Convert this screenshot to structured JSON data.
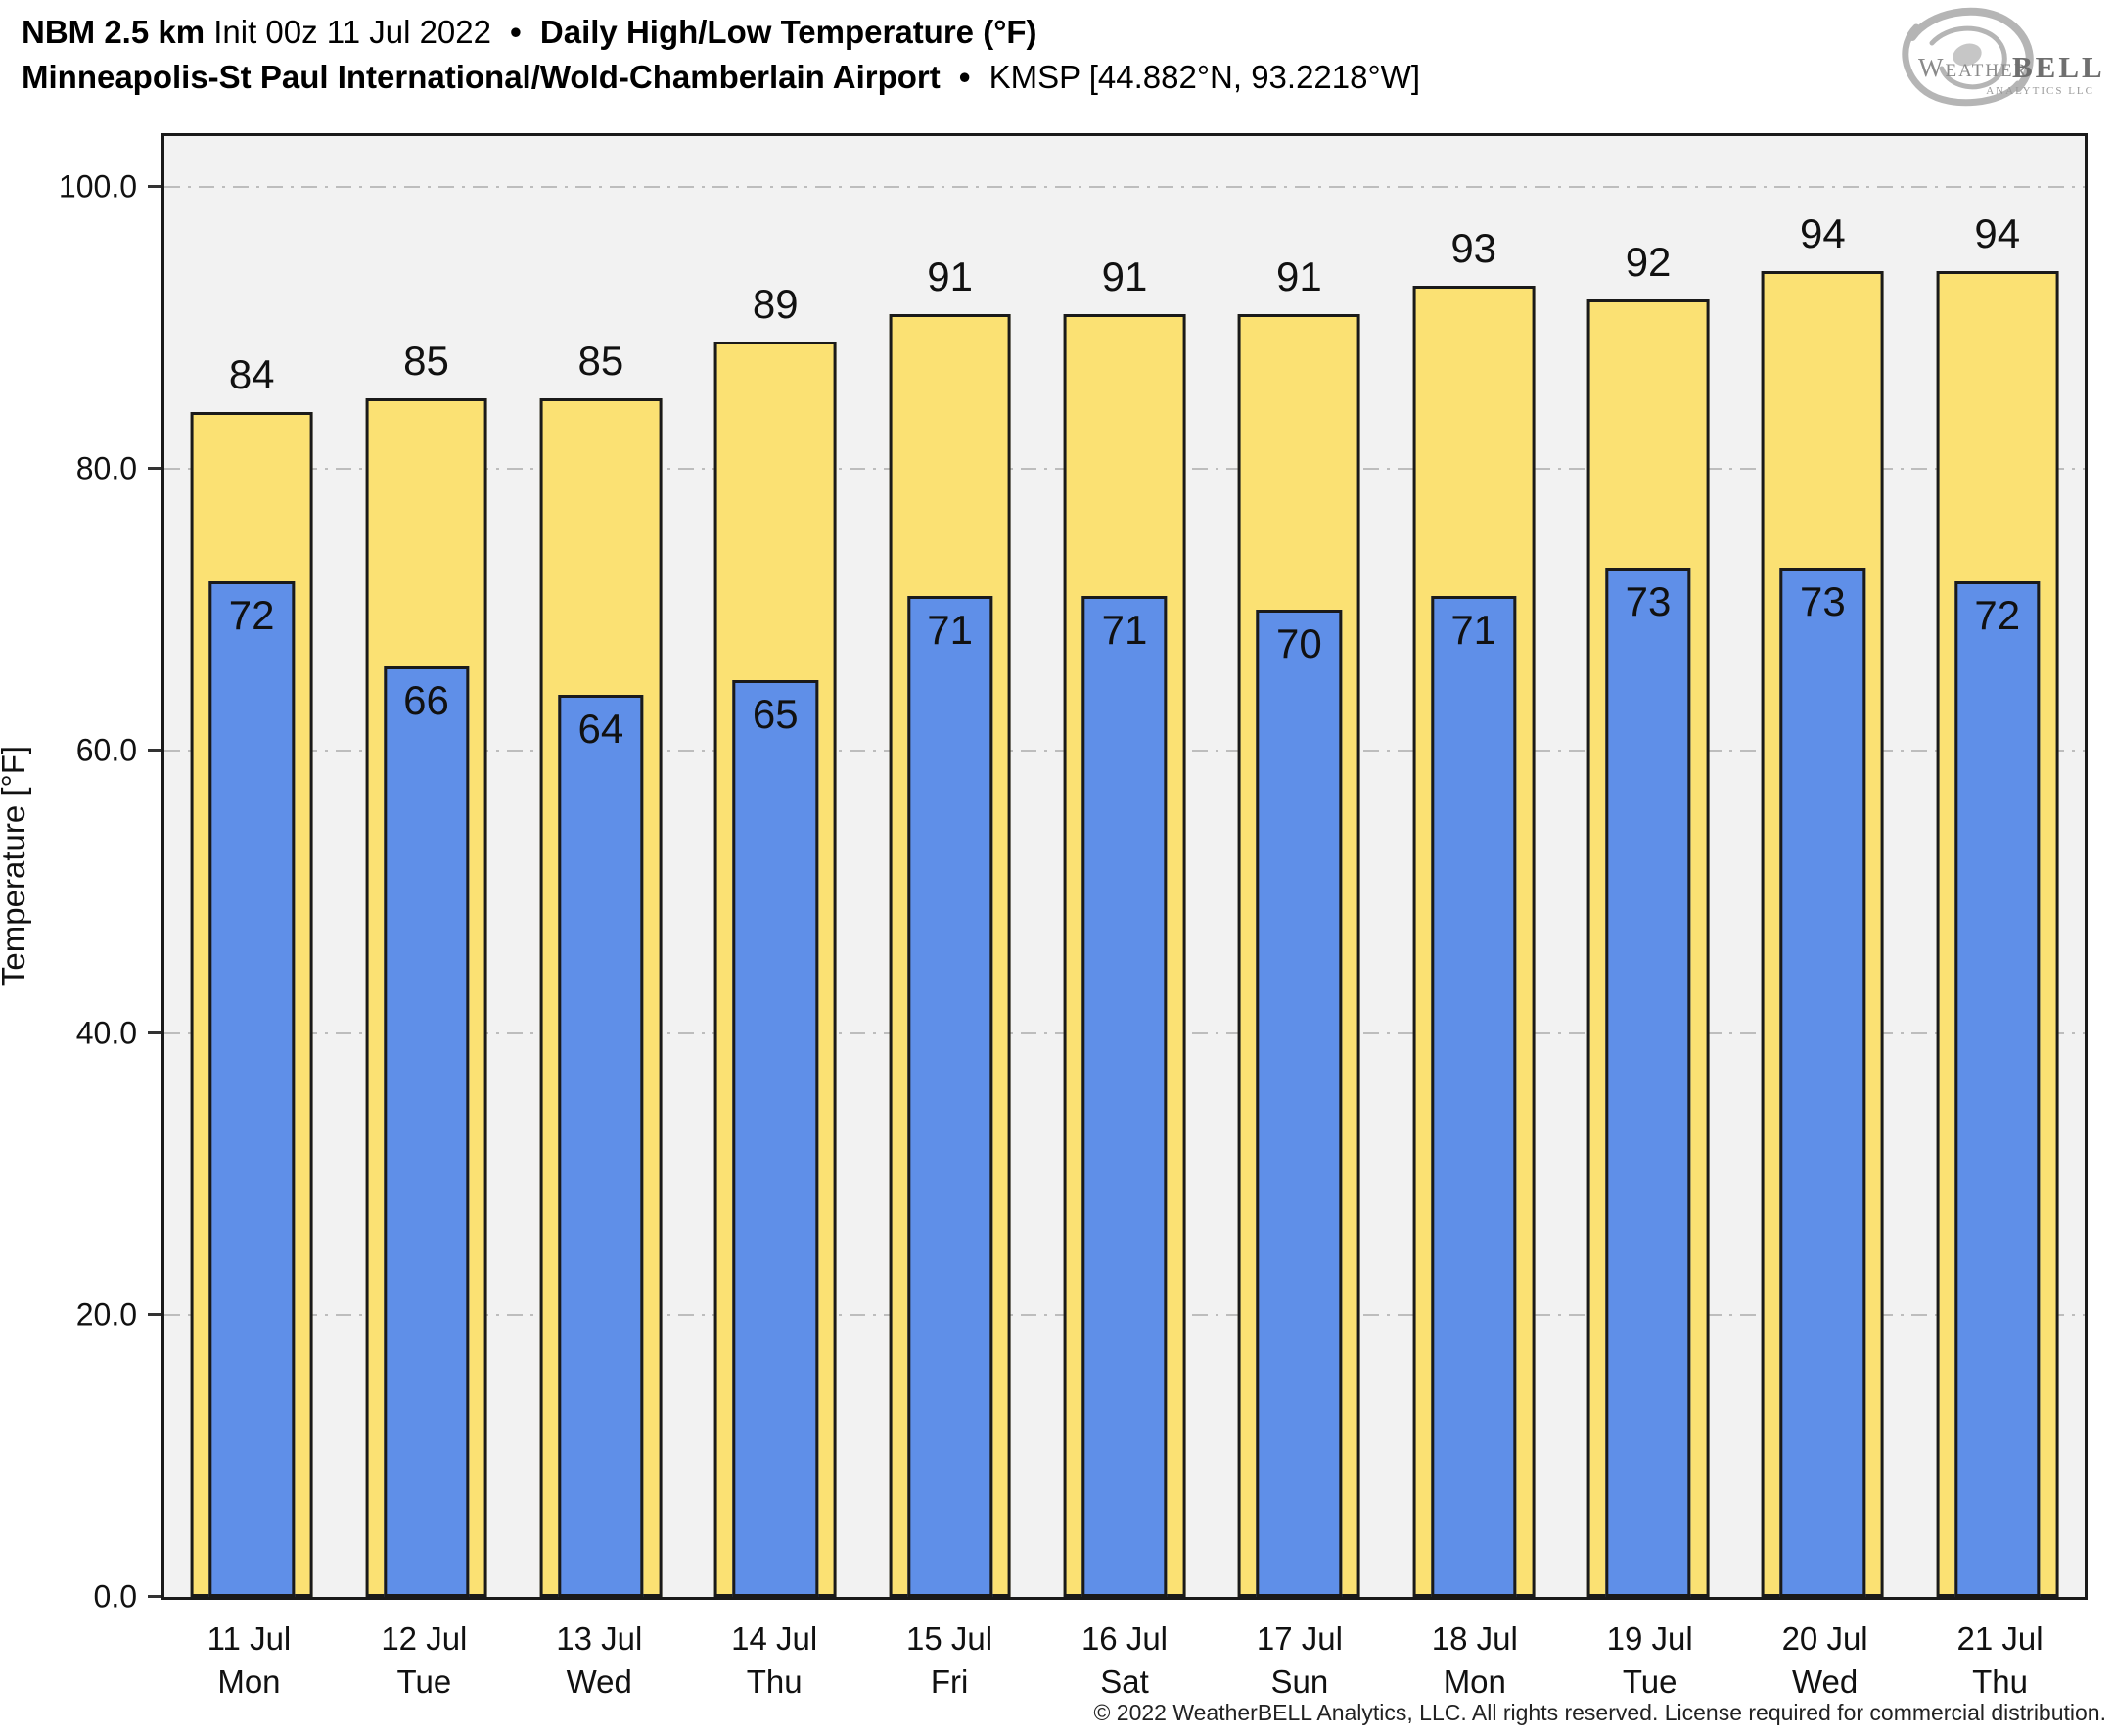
{
  "header": {
    "model": "NBM 2.5 km",
    "init": "Init 00z 11 Jul 2022",
    "sep": "•",
    "title": "Daily High/Low Temperature (°F)",
    "station": "Minneapolis-St Paul International/Wold-Chamberlain Airport",
    "station_meta": "KMSP [44.882°N, 93.2218°W]"
  },
  "logo": {
    "weather": "Weather",
    "bell": "BELL",
    "analytics": "Analytics LLC"
  },
  "chart_data": {
    "type": "bar",
    "title": "Daily High/Low Temperature (°F)",
    "xlabel": "",
    "ylabel": "Temperature [°F]",
    "ylim": [
      0,
      103.6
    ],
    "grid": "horizontal dash-dot",
    "legend_position": "none",
    "plot_background": "#f2f2f2",
    "yticks": [
      {
        "value": 100,
        "label": "100.0"
      },
      {
        "value": 80,
        "label": "80.0"
      },
      {
        "value": 60,
        "label": "60.0"
      },
      {
        "value": 40,
        "label": "40.0"
      },
      {
        "value": 20,
        "label": "20.0"
      },
      {
        "value": 0,
        "label": "0.0"
      }
    ],
    "categories": [
      {
        "date": "11 Jul",
        "weekday": "Mon"
      },
      {
        "date": "12 Jul",
        "weekday": "Tue"
      },
      {
        "date": "13 Jul",
        "weekday": "Wed"
      },
      {
        "date": "14 Jul",
        "weekday": "Thu"
      },
      {
        "date": "15 Jul",
        "weekday": "Fri"
      },
      {
        "date": "16 Jul",
        "weekday": "Sat"
      },
      {
        "date": "17 Jul",
        "weekday": "Sun"
      },
      {
        "date": "18 Jul",
        "weekday": "Mon"
      },
      {
        "date": "19 Jul",
        "weekday": "Tue"
      },
      {
        "date": "20 Jul",
        "weekday": "Wed"
      },
      {
        "date": "21 Jul",
        "weekday": "Thu"
      }
    ],
    "series": [
      {
        "name": "Daily High",
        "color": "#fbe173",
        "values": [
          84,
          85,
          85,
          89,
          91,
          91,
          91,
          93,
          92,
          94,
          94
        ]
      },
      {
        "name": "Daily Low",
        "color": "#5f8fe8",
        "values": [
          72,
          66,
          64,
          65,
          71,
          71,
          70,
          71,
          73,
          73,
          72
        ]
      }
    ]
  },
  "colors": {
    "high_fill": "#fbe173",
    "low_fill": "#5f8fe8",
    "bar_outline": "#1a1a1a",
    "gridline": "#bdbdbd",
    "plot_bg": "#f2f2f2",
    "logo_gray": "#adadad"
  },
  "footer": {
    "copyright": "© 2022 WeatherBELL Analytics, LLC. All rights reserved. License required for commercial distribution."
  }
}
